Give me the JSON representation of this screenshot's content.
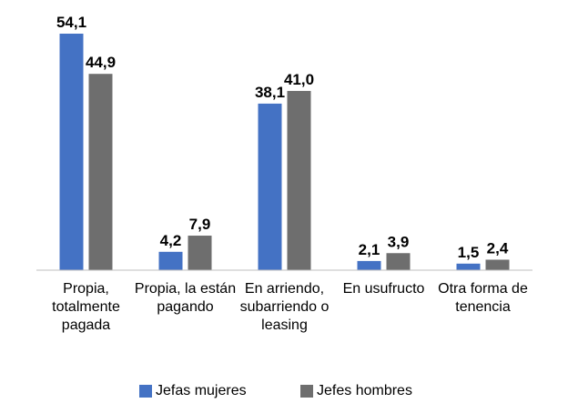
{
  "chart_data": {
    "type": "bar",
    "categories": [
      "Propia, totalmente pagada",
      "Propia, la están pagando",
      "En arriendo, subarriendo o leasing",
      "En usufructo",
      "Otra forma de tenencia"
    ],
    "series": [
      {
        "name": "Jefas mujeres",
        "color": "#4472c4",
        "values": [
          54.1,
          4.2,
          38.1,
          2.1,
          1.5
        ],
        "value_labels": [
          "54,1",
          "4,2",
          "38,1",
          "2,1",
          "1,5"
        ]
      },
      {
        "name": "Jefes hombres",
        "color": "#6e6e6e",
        "values": [
          44.9,
          7.9,
          41.0,
          3.9,
          2.4
        ],
        "value_labels": [
          "44,9",
          "7,9",
          "41,0",
          "3,9",
          "2,4"
        ]
      }
    ],
    "legend": "bottom"
  }
}
